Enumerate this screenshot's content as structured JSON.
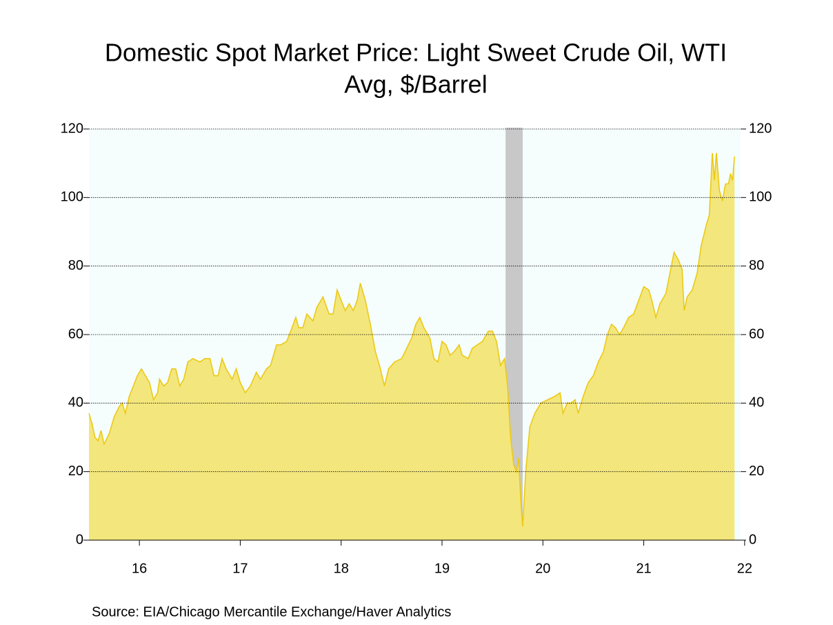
{
  "chart_data": {
    "type": "area",
    "title": "Domestic Spot Market Price: Light Sweet Crude Oil, WTI",
    "subtitle": "Avg, $/Barrel",
    "source": "Source:  EIA/Chicago Mercantile Exchange/Haver Analytics",
    "x": [
      2016.0,
      2016.03,
      2016.06,
      2016.09,
      2016.12,
      2016.15,
      2016.2,
      2016.25,
      2016.3,
      2016.33,
      2016.36,
      2016.4,
      2016.44,
      2016.48,
      2016.52,
      2016.56,
      2016.6,
      2016.64,
      2016.68,
      2016.7,
      2016.74,
      2016.78,
      2016.82,
      2016.86,
      2016.9,
      2016.94,
      2016.98,
      2017.03,
      2017.1,
      2017.15,
      2017.2,
      2017.24,
      2017.28,
      2017.32,
      2017.36,
      2017.42,
      2017.46,
      2017.5,
      2017.55,
      2017.6,
      2017.66,
      2017.7,
      2017.76,
      2017.8,
      2017.86,
      2017.9,
      2017.96,
      2018.0,
      2018.05,
      2018.08,
      2018.12,
      2018.16,
      2018.22,
      2018.26,
      2018.32,
      2018.38,
      2018.42,
      2018.46,
      2018.5,
      2018.54,
      2018.58,
      2018.62,
      2018.66,
      2018.69,
      2018.74,
      2018.79,
      2018.84,
      2018.88,
      2018.93,
      2018.97,
      2019.03,
      2019.1,
      2019.15,
      2019.2,
      2019.24,
      2019.28,
      2019.32,
      2019.38,
      2019.42,
      2019.46,
      2019.5,
      2019.54,
      2019.58,
      2019.62,
      2019.67,
      2019.7,
      2019.76,
      2019.8,
      2019.85,
      2019.9,
      2019.96,
      2020.0,
      2020.04,
      2020.08,
      2020.12,
      2020.15,
      2020.18,
      2020.21,
      2020.24,
      2020.26,
      2020.28,
      2020.3,
      2020.33,
      2020.37,
      2020.42,
      2020.48,
      2020.55,
      2020.62,
      2020.67,
      2020.7,
      2020.74,
      2020.78,
      2020.82,
      2020.85,
      2020.9,
      2020.95,
      2021.0,
      2021.05,
      2021.1,
      2021.14,
      2021.18,
      2021.22,
      2021.26,
      2021.3,
      2021.35,
      2021.4,
      2021.45,
      2021.5,
      2021.55,
      2021.58,
      2021.62,
      2021.66,
      2021.72,
      2021.76,
      2021.8,
      2021.84,
      2021.88,
      2021.9,
      2021.93,
      2021.98,
      2022.03,
      2022.07,
      2022.12,
      2022.15,
      2022.18,
      2022.2,
      2022.22,
      2022.25,
      2022.28,
      2022.31,
      2022.34,
      2022.36,
      2022.38,
      2022.4
    ],
    "values": [
      37,
      34,
      30,
      29,
      32,
      28,
      31,
      36,
      39,
      40,
      37,
      42,
      45,
      48,
      50,
      48,
      46,
      41,
      43,
      47,
      45,
      46,
      50,
      50,
      45,
      47,
      52,
      53,
      52,
      53,
      53,
      48,
      48,
      53,
      50,
      47,
      50,
      46,
      43,
      45,
      49,
      47,
      50,
      51,
      57,
      57,
      58,
      61,
      65,
      62,
      62,
      66,
      64,
      68,
      71,
      66,
      66,
      73,
      70,
      67,
      69,
      67,
      70,
      75,
      70,
      63,
      55,
      51,
      45,
      50,
      52,
      53,
      56,
      59,
      63,
      65,
      62,
      59,
      53,
      52,
      58,
      57,
      54,
      55,
      57,
      54,
      53,
      56,
      57,
      58,
      61,
      61,
      58,
      51,
      53,
      45,
      30,
      22,
      20,
      24,
      12,
      4,
      20,
      33,
      37,
      40,
      41,
      42,
      43,
      37,
      40,
      40,
      41,
      37,
      42,
      46,
      48,
      52,
      55,
      60,
      63,
      62,
      60,
      62,
      65,
      66,
      70,
      74,
      73,
      70,
      65,
      69,
      72,
      78,
      84,
      82,
      79,
      67,
      71,
      73,
      78,
      86,
      92,
      95,
      113,
      105,
      113,
      102,
      99,
      104,
      104,
      107,
      105,
      112
    ],
    "color": "#f3e67c",
    "line_color": "#ecc915",
    "background": "#f5fdfd",
    "recession": [
      2020.13,
      2020.3
    ],
    "recession_color": "#c8c8c8",
    "xlim": [
      2016,
      2022.46
    ],
    "xticks": [
      {
        "value": 2016.5,
        "label": "16"
      },
      {
        "value": 2017.5,
        "label": "17"
      },
      {
        "value": 2018.5,
        "label": "18"
      },
      {
        "value": 2019.5,
        "label": "19"
      },
      {
        "value": 2020.5,
        "label": "20"
      },
      {
        "value": 2021.5,
        "label": "21"
      },
      {
        "value": 2022.5,
        "label": "22"
      }
    ],
    "ylim": [
      0,
      120
    ],
    "yticks": [
      0,
      20,
      40,
      60,
      80,
      100,
      120
    ],
    "grid": true
  }
}
